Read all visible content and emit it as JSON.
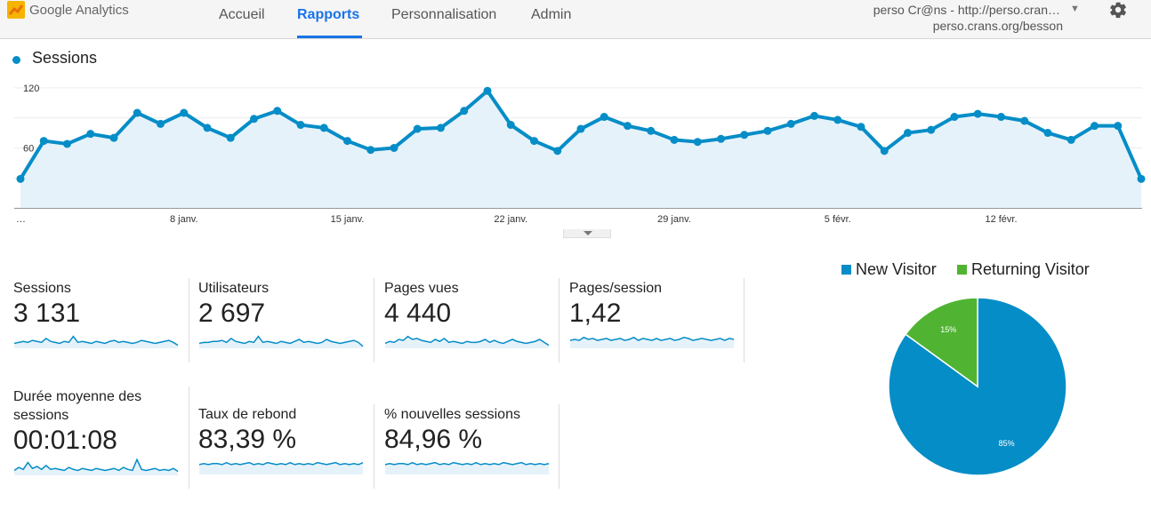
{
  "header": {
    "app_name": "Google Analytics",
    "nav": [
      "Accueil",
      "Rapports",
      "Personnalisation",
      "Admin"
    ],
    "active_nav": "Rapports",
    "account_name": "perso Cr@ns - http://perso.cran…",
    "account_url": "perso.crans.org/besson",
    "icons": [
      "analytics-logo-icon",
      "chevron-down-icon",
      "gear-icon"
    ]
  },
  "colors": {
    "accent": "#058dc7",
    "fill": "#e6f2fa",
    "returning": "#50b432",
    "nav_active": "#1a73e8"
  },
  "chart_data": [
    {
      "type": "area",
      "title": "Sessions",
      "ylim": [
        0,
        135
      ],
      "y_ticks": [
        "120",
        "60"
      ],
      "y_tick_values": [
        120,
        60
      ],
      "x_ticks": [
        "…",
        "8 janv.",
        "15 janv.",
        "22 janv.",
        "29 janv.",
        "5 févr.",
        "12 févr."
      ],
      "x_tick_indices": [
        0,
        7,
        14,
        21,
        28,
        35,
        42
      ],
      "values": [
        29,
        67,
        64,
        74,
        70,
        95,
        84,
        95,
        80,
        70,
        89,
        97,
        83,
        80,
        67,
        58,
        60,
        79,
        80,
        97,
        117,
        83,
        67,
        57,
        79,
        91,
        82,
        77,
        68,
        66,
        69,
        73,
        77,
        84,
        92,
        88,
        81,
        57,
        75,
        78,
        91,
        94,
        91,
        87,
        75,
        68,
        82,
        82,
        29
      ],
      "grid": true
    },
    {
      "type": "pie",
      "series": [
        {
          "name": "New Visitor",
          "value": 85,
          "label": "85%"
        },
        {
          "name": "Returning Visitor",
          "value": 15,
          "label": "15%"
        }
      ],
      "legend": "top"
    }
  ],
  "metrics": [
    {
      "label": "Sessions",
      "value": "3 131",
      "spark": [
        5,
        6,
        7,
        6,
        8,
        7,
        6,
        10,
        7,
        6,
        5,
        7,
        6,
        12,
        6,
        7,
        6,
        5,
        7,
        6,
        5,
        7,
        8,
        6,
        7,
        6,
        5,
        6,
        8,
        7,
        6,
        5,
        6,
        7,
        8,
        6,
        3
      ]
    },
    {
      "label": "Utilisateurs",
      "value": "2 697",
      "spark": [
        5,
        6,
        6,
        7,
        7,
        8,
        6,
        10,
        7,
        6,
        5,
        7,
        6,
        12,
        6,
        7,
        6,
        5,
        7,
        6,
        5,
        7,
        9,
        6,
        7,
        6,
        5,
        6,
        9,
        7,
        6,
        5,
        6,
        7,
        8,
        6,
        2
      ]
    },
    {
      "label": "Pages vues",
      "value": "4 440",
      "spark": [
        5,
        7,
        6,
        9,
        8,
        12,
        9,
        10,
        8,
        7,
        6,
        9,
        7,
        10,
        6,
        7,
        6,
        5,
        7,
        6,
        6,
        7,
        9,
        6,
        8,
        6,
        5,
        7,
        9,
        7,
        6,
        5,
        6,
        7,
        9,
        6,
        3
      ]
    },
    {
      "label": "Pages/session",
      "value": "1,42",
      "spark": [
        8,
        9,
        8,
        11,
        9,
        10,
        8,
        9,
        10,
        8,
        9,
        10,
        8,
        9,
        11,
        8,
        10,
        9,
        8,
        10,
        8,
        9,
        10,
        8,
        9,
        11,
        10,
        8,
        9,
        10,
        9,
        8,
        9,
        10,
        8,
        10,
        9
      ]
    },
    {
      "label": "Durée moyenne des sessions",
      "value": "00:01:08",
      "spark": [
        5,
        8,
        6,
        13,
        7,
        9,
        6,
        10,
        6,
        7,
        6,
        5,
        8,
        6,
        5,
        7,
        6,
        5,
        7,
        6,
        5,
        6,
        7,
        5,
        8,
        6,
        5,
        16,
        6,
        5,
        6,
        7,
        5,
        6,
        5,
        7,
        4
      ]
    },
    {
      "label": "Taux de rebond",
      "value": "83,39 %",
      "spark": [
        10,
        11,
        10,
        11,
        11,
        10,
        12,
        10,
        11,
        10,
        11,
        12,
        10,
        11,
        10,
        12,
        11,
        10,
        11,
        10,
        12,
        10,
        11,
        10,
        11,
        10,
        12,
        11,
        10,
        11,
        12,
        10,
        11,
        10,
        11,
        10,
        12
      ]
    },
    {
      "label": "% nouvelles sessions",
      "value": "84,96 %",
      "spark": [
        10,
        11,
        10,
        11,
        11,
        10,
        12,
        10,
        11,
        10,
        11,
        12,
        10,
        11,
        10,
        12,
        11,
        10,
        11,
        10,
        12,
        10,
        11,
        10,
        11,
        10,
        12,
        11,
        10,
        11,
        12,
        10,
        11,
        10,
        11,
        10,
        11
      ]
    }
  ]
}
